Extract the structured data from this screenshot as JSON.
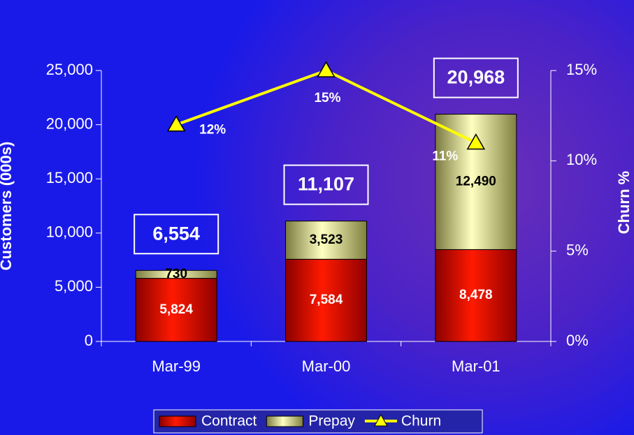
{
  "chart_data": {
    "type": "stacked-bar-line",
    "categories": [
      "Mar-99",
      "Mar-00",
      "Mar-01"
    ],
    "series": [
      {
        "name": "Contract",
        "color": "#e00000",
        "values": [
          5824,
          7584,
          8478
        ],
        "value_labels": [
          "5,824",
          "7,584",
          "8,478"
        ]
      },
      {
        "name": "Prepay",
        "color": "#e8e8a0",
        "values": [
          730,
          3523,
          12490
        ],
        "value_labels": [
          "730",
          "3,523",
          "12,490"
        ]
      },
      {
        "name": "Churn",
        "color": "#ffff00",
        "axis": "y2",
        "values": [
          12,
          15,
          11
        ],
        "value_labels": [
          "12%",
          "15%",
          "11%"
        ]
      }
    ],
    "totals": [
      6554,
      11107,
      20968
    ],
    "total_labels": [
      "6,554",
      "11,107",
      "20,968"
    ],
    "ylabel": "Customers (000s)",
    "y2label": "Churn %",
    "ylim": [
      0,
      25000
    ],
    "yticks": [
      0,
      {
        "value": 5000,
        "label": "5,000"
      },
      {
        "value": 10000,
        "label": "10,000"
      },
      {
        "value": 15000,
        "label": "15,000"
      },
      {
        "value": 20000,
        "label": "20,000"
      },
      {
        "value": 25000,
        "label": "25,000"
      }
    ],
    "y2lim": [
      0,
      15
    ],
    "y2ticks": [
      {
        "value": 0,
        "label": "0%"
      },
      {
        "value": 5,
        "label": "5%"
      },
      {
        "value": 10,
        "label": "10%"
      },
      {
        "value": 15,
        "label": "15%"
      }
    ],
    "legend": "bottom"
  }
}
